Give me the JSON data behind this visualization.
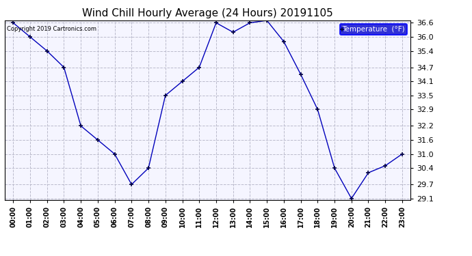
{
  "title": "Wind Chill Hourly Average (24 Hours) 20191105",
  "hours": [
    "00:00",
    "01:00",
    "02:00",
    "03:00",
    "04:00",
    "05:00",
    "06:00",
    "07:00",
    "08:00",
    "09:00",
    "10:00",
    "11:00",
    "12:00",
    "13:00",
    "14:00",
    "15:00",
    "16:00",
    "17:00",
    "18:00",
    "19:00",
    "20:00",
    "21:00",
    "22:00",
    "23:00"
  ],
  "values": [
    36.6,
    36.0,
    35.4,
    34.7,
    32.2,
    31.6,
    31.0,
    29.7,
    30.4,
    33.5,
    34.1,
    34.7,
    36.6,
    36.2,
    36.6,
    36.7,
    35.8,
    34.4,
    32.9,
    30.4,
    29.1,
    30.2,
    30.5,
    31.0
  ],
  "ylim_min": 29.1,
  "ylim_max": 36.6,
  "line_color": "#0000bb",
  "marker_color": "#000044",
  "background_color": "#ffffff",
  "plot_bg_color": "#f5f5ff",
  "grid_color": "#bbbbcc",
  "copyright_text": "Copyright 2019 Cartronics.com",
  "yticks": [
    29.1,
    29.7,
    30.4,
    31.0,
    31.6,
    32.2,
    32.9,
    33.5,
    34.1,
    34.7,
    35.4,
    36.0,
    36.6
  ],
  "legend_label": "Temperature  (°F)",
  "legend_bg": "#0000cc",
  "legend_text_color": "#ffffff",
  "title_fontsize": 11,
  "tick_fontsize": 7,
  "ytick_fontsize": 8
}
